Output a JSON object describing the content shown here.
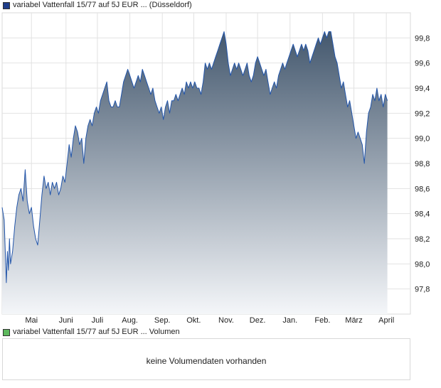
{
  "legend": {
    "price_label": "variabel Vattenfall 15/77 auf 5J EUR ... (Düsseldorf)",
    "price_color": "#1f3d8a",
    "volume_label": "variabel Vattenfall 15/77 auf 5J EUR ... Volumen",
    "volume_color": "#5cb85c"
  },
  "volume": {
    "message": "keine Volumendaten vorhanden"
  },
  "chart_data": {
    "type": "area",
    "title": "",
    "xlabel": "",
    "ylabel": "",
    "ylim": [
      97.6,
      100.0
    ],
    "yticks": [
      "99,8",
      "99,6",
      "99,4",
      "99,2",
      "99,0",
      "98,8",
      "98,6",
      "98,4",
      "98,2",
      "98,0",
      "97,8"
    ],
    "ytick_values": [
      99.8,
      99.6,
      99.4,
      99.2,
      99.0,
      98.8,
      98.6,
      98.4,
      98.2,
      98.0,
      97.8
    ],
    "x_months": [
      "Mai",
      "Juni",
      "Juli",
      "Aug.",
      "Sep.",
      "Okt.",
      "Nov.",
      "Dez.",
      "Jan.",
      "Feb.",
      "März",
      "April"
    ],
    "x_range_days": [
      0,
      390
    ],
    "x_month_days": [
      28,
      61,
      91,
      122,
      153,
      183,
      214,
      244,
      275,
      306,
      336,
      367
    ],
    "grid": true,
    "line_color": "#2255aa",
    "fill_top_color": "#44586e",
    "fill_bottom_color": "#f4f6f9",
    "series": [
      {
        "values": [
          [
            0,
            98.45
          ],
          [
            2,
            98.35
          ],
          [
            4,
            97.85
          ],
          [
            5,
            98.1
          ],
          [
            6,
            97.95
          ],
          [
            7,
            98.2
          ],
          [
            8,
            98.0
          ],
          [
            10,
            98.1
          ],
          [
            12,
            98.3
          ],
          [
            14,
            98.45
          ],
          [
            16,
            98.55
          ],
          [
            18,
            98.6
          ],
          [
            20,
            98.5
          ],
          [
            22,
            98.75
          ],
          [
            24,
            98.5
          ],
          [
            26,
            98.4
          ],
          [
            28,
            98.45
          ],
          [
            30,
            98.3
          ],
          [
            32,
            98.2
          ],
          [
            34,
            98.15
          ],
          [
            36,
            98.35
          ],
          [
            38,
            98.55
          ],
          [
            40,
            98.7
          ],
          [
            42,
            98.6
          ],
          [
            44,
            98.65
          ],
          [
            46,
            98.55
          ],
          [
            48,
            98.65
          ],
          [
            50,
            98.6
          ],
          [
            52,
            98.65
          ],
          [
            54,
            98.55
          ],
          [
            56,
            98.6
          ],
          [
            58,
            98.7
          ],
          [
            60,
            98.65
          ],
          [
            62,
            98.8
          ],
          [
            64,
            98.95
          ],
          [
            66,
            98.85
          ],
          [
            68,
            99.0
          ],
          [
            70,
            99.1
          ],
          [
            72,
            99.05
          ],
          [
            74,
            98.95
          ],
          [
            76,
            99.0
          ],
          [
            78,
            98.8
          ],
          [
            80,
            99.0
          ],
          [
            82,
            99.1
          ],
          [
            84,
            99.15
          ],
          [
            86,
            99.1
          ],
          [
            88,
            99.2
          ],
          [
            90,
            99.25
          ],
          [
            92,
            99.2
          ],
          [
            94,
            99.3
          ],
          [
            96,
            99.35
          ],
          [
            98,
            99.4
          ],
          [
            100,
            99.45
          ],
          [
            102,
            99.3
          ],
          [
            104,
            99.25
          ],
          [
            106,
            99.25
          ],
          [
            108,
            99.3
          ],
          [
            110,
            99.25
          ],
          [
            112,
            99.25
          ],
          [
            114,
            99.35
          ],
          [
            116,
            99.45
          ],
          [
            118,
            99.5
          ],
          [
            120,
            99.55
          ],
          [
            122,
            99.5
          ],
          [
            124,
            99.45
          ],
          [
            126,
            99.4
          ],
          [
            128,
            99.45
          ],
          [
            130,
            99.5
          ],
          [
            132,
            99.45
          ],
          [
            134,
            99.55
          ],
          [
            136,
            99.5
          ],
          [
            138,
            99.45
          ],
          [
            140,
            99.4
          ],
          [
            142,
            99.35
          ],
          [
            144,
            99.4
          ],
          [
            146,
            99.3
          ],
          [
            148,
            99.25
          ],
          [
            150,
            99.2
          ],
          [
            152,
            99.25
          ],
          [
            154,
            99.15
          ],
          [
            156,
            99.25
          ],
          [
            158,
            99.3
          ],
          [
            160,
            99.2
          ],
          [
            162,
            99.3
          ],
          [
            164,
            99.3
          ],
          [
            166,
            99.35
          ],
          [
            168,
            99.3
          ],
          [
            170,
            99.35
          ],
          [
            172,
            99.4
          ],
          [
            174,
            99.35
          ],
          [
            176,
            99.45
          ],
          [
            178,
            99.4
          ],
          [
            180,
            99.45
          ],
          [
            182,
            99.4
          ],
          [
            184,
            99.45
          ],
          [
            186,
            99.4
          ],
          [
            188,
            99.4
          ],
          [
            190,
            99.35
          ],
          [
            192,
            99.45
          ],
          [
            194,
            99.6
          ],
          [
            196,
            99.55
          ],
          [
            198,
            99.6
          ],
          [
            200,
            99.55
          ],
          [
            202,
            99.6
          ],
          [
            204,
            99.65
          ],
          [
            206,
            99.7
          ],
          [
            208,
            99.75
          ],
          [
            210,
            99.8
          ],
          [
            212,
            99.85
          ],
          [
            214,
            99.75
          ],
          [
            216,
            99.6
          ],
          [
            218,
            99.5
          ],
          [
            220,
            99.55
          ],
          [
            222,
            99.6
          ],
          [
            224,
            99.55
          ],
          [
            226,
            99.6
          ],
          [
            228,
            99.55
          ],
          [
            230,
            99.5
          ],
          [
            232,
            99.55
          ],
          [
            234,
            99.6
          ],
          [
            236,
            99.5
          ],
          [
            238,
            99.45
          ],
          [
            240,
            99.5
          ],
          [
            242,
            99.6
          ],
          [
            244,
            99.65
          ],
          [
            246,
            99.6
          ],
          [
            248,
            99.55
          ],
          [
            250,
            99.5
          ],
          [
            252,
            99.55
          ],
          [
            254,
            99.45
          ],
          [
            256,
            99.35
          ],
          [
            258,
            99.4
          ],
          [
            260,
            99.45
          ],
          [
            262,
            99.4
          ],
          [
            264,
            99.5
          ],
          [
            266,
            99.55
          ],
          [
            268,
            99.6
          ],
          [
            270,
            99.55
          ],
          [
            272,
            99.6
          ],
          [
            274,
            99.65
          ],
          [
            276,
            99.7
          ],
          [
            278,
            99.75
          ],
          [
            280,
            99.7
          ],
          [
            282,
            99.65
          ],
          [
            284,
            99.7
          ],
          [
            286,
            99.75
          ],
          [
            288,
            99.7
          ],
          [
            290,
            99.75
          ],
          [
            292,
            99.7
          ],
          [
            294,
            99.6
          ],
          [
            296,
            99.65
          ],
          [
            298,
            99.7
          ],
          [
            300,
            99.75
          ],
          [
            302,
            99.8
          ],
          [
            304,
            99.75
          ],
          [
            306,
            99.8
          ],
          [
            308,
            99.85
          ],
          [
            310,
            99.8
          ],
          [
            312,
            99.85
          ],
          [
            314,
            99.85
          ],
          [
            316,
            99.75
          ],
          [
            318,
            99.65
          ],
          [
            320,
            99.6
          ],
          [
            322,
            99.5
          ],
          [
            324,
            99.4
          ],
          [
            326,
            99.45
          ],
          [
            328,
            99.35
          ],
          [
            330,
            99.25
          ],
          [
            332,
            99.3
          ],
          [
            334,
            99.2
          ],
          [
            336,
            99.1
          ],
          [
            338,
            99.0
          ],
          [
            340,
            99.05
          ],
          [
            342,
            99.0
          ],
          [
            344,
            98.95
          ],
          [
            346,
            98.8
          ],
          [
            348,
            99.05
          ],
          [
            350,
            99.2
          ],
          [
            352,
            99.25
          ],
          [
            354,
            99.35
          ],
          [
            356,
            99.3
          ],
          [
            358,
            99.4
          ],
          [
            360,
            99.3
          ],
          [
            362,
            99.35
          ],
          [
            364,
            99.25
          ],
          [
            366,
            99.35
          ],
          [
            368,
            99.3
          ]
        ]
      }
    ]
  }
}
